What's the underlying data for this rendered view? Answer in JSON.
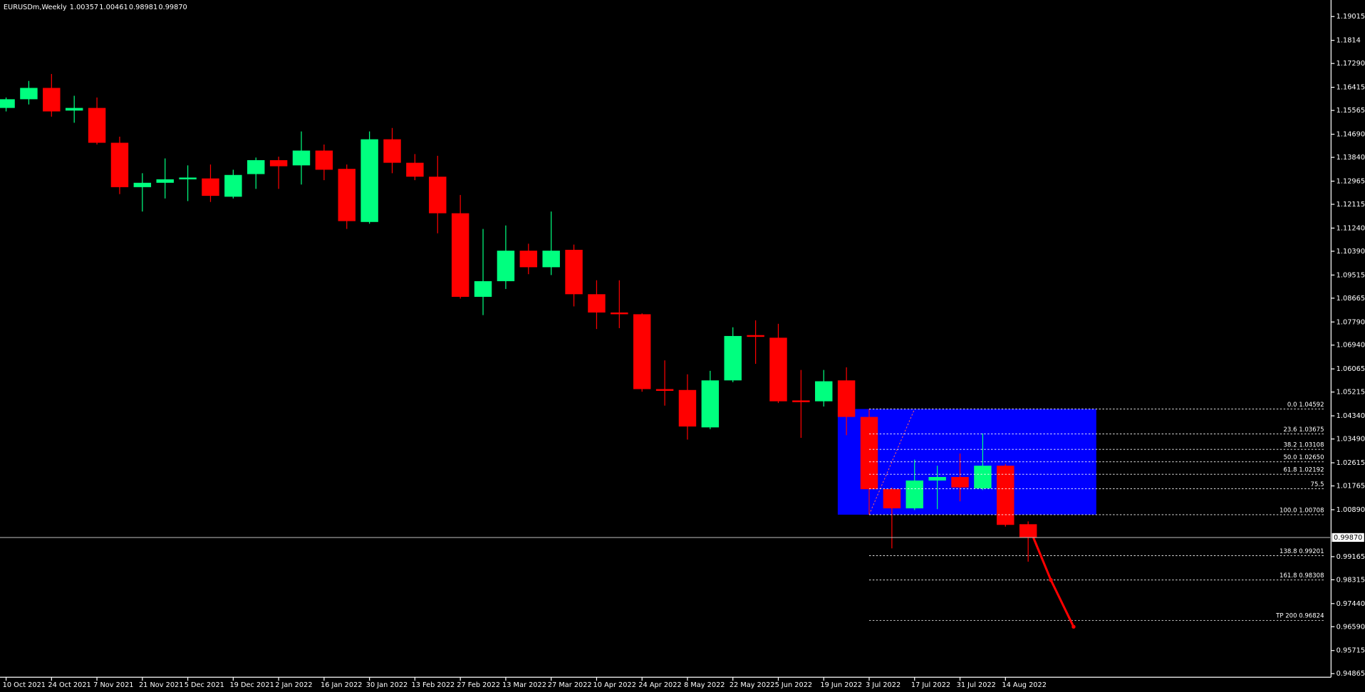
{
  "chart_data": {
    "type": "candlestick",
    "header": {
      "symbol": "EURUSDm,Weekly",
      "quote": [
        "1.00357",
        "1.00461",
        "0.98981",
        "0.99870"
      ]
    },
    "categories": [
      "10 Oct 2021",
      null,
      "24 Oct 2021",
      null,
      "7 Nov 2021",
      null,
      "21 Nov 2021",
      null,
      "5 Dec 2021",
      null,
      "19 Dec 2021",
      null,
      "2 Jan 2022",
      null,
      "16 Jan 2022",
      null,
      "30 Jan 2022",
      null,
      "13 Feb 2022",
      null,
      "27 Feb 2022",
      null,
      "13 Mar 2022",
      null,
      "27 Mar 2022",
      null,
      "10 Apr 2022",
      null,
      "24 Apr 2022",
      null,
      "8 May 2022",
      null,
      "22 May 2022",
      null,
      "5 Jun 2022",
      null,
      "19 Jun 2022",
      null,
      "3 Jul 2022",
      null,
      "17 Jul 2022",
      null,
      "31 Jul 2022",
      null,
      "14 Aug 2022",
      null
    ],
    "up_color": "#00ff7f",
    "down_color": "#ff0000",
    "open": [
      1.15656,
      1.15976,
      1.16392,
      1.1556,
      1.15656,
      1.14376,
      1.12745,
      1.12905,
      1.13033,
      1.13065,
      1.12393,
      1.13225,
      1.13737,
      1.13545,
      1.14089,
      1.13417,
      1.11465,
      1.14504,
      1.13641,
      1.13129,
      1.11785,
      1.08714,
      1.0929,
      1.1041,
      1.09802,
      1.10442,
      1.0881,
      1.08138,
      1.08074,
      1.05323,
      1.05291,
      1.03916,
      1.05643,
      1.07307,
      1.07211,
      1.04907,
      1.04875,
      1.05643,
      1.043,
      1.01644,
      1.00941,
      1.01964,
      1.02092,
      1.01676,
      1.02508,
      1.00357
    ],
    "high": [
      1.1604,
      1.16648,
      1.16904,
      1.16104,
      1.1604,
      1.146,
      1.13257,
      1.13801,
      1.13545,
      1.13577,
      1.13385,
      1.13833,
      1.13865,
      1.14792,
      1.14312,
      1.13577,
      1.14792,
      1.1492,
      1.13961,
      1.13897,
      1.12457,
      1.11209,
      1.11337,
      1.10666,
      1.11849,
      1.10634,
      1.09322,
      1.09322,
      1.08106,
      1.06379,
      1.05867,
      1.05995,
      1.07595,
      1.0785,
      1.07723,
      1.06027,
      1.06027,
      1.06123,
      1.04588,
      1.01708,
      1.02732,
      1.02508,
      1.02956,
      1.03692,
      1.02572,
      1.00461
    ],
    "low": [
      1.15528,
      1.15784,
      1.15336,
      1.15112,
      1.14312,
      1.12489,
      1.11849,
      1.12329,
      1.12233,
      1.12201,
      1.12329,
      1.12681,
      1.12681,
      1.12841,
      1.13001,
      1.11209,
      1.11401,
      1.13257,
      1.13001,
      1.11049,
      1.0865,
      1.08042,
      1.09002,
      1.09546,
      1.09514,
      1.08362,
      1.07531,
      1.07563,
      1.05227,
      1.04715,
      1.03468,
      1.03852,
      1.05579,
      1.06251,
      1.04811,
      1.03532,
      1.04683,
      1.03628,
      1.00717,
      0.99469,
      1.00877,
      1.00909,
      1.01197,
      1.01612,
      1.00269,
      0.98981
    ],
    "close": [
      1.15976,
      1.16392,
      1.15528,
      1.15656,
      1.14376,
      1.12745,
      1.12905,
      1.13033,
      1.13097,
      1.12425,
      1.13193,
      1.13737,
      1.13513,
      1.14089,
      1.13385,
      1.11497,
      1.14504,
      1.13641,
      1.13129,
      1.11785,
      1.08714,
      1.0929,
      1.1041,
      1.09802,
      1.1041,
      1.0881,
      1.08138,
      1.08074,
      1.05323,
      1.05259,
      1.03948,
      1.05643,
      1.07275,
      1.07243,
      1.04875,
      1.04843,
      1.05611,
      1.043,
      1.01644,
      1.00941,
      1.01964,
      1.02092,
      1.01708,
      1.02508,
      1.00333,
      0.9987
    ],
    "ylim": [
      0.94735,
      1.19623
    ],
    "yticks": [
      1.19015,
      1.1814,
      {
        "value": 1.1729,
        "label": "1.17290"
      },
      1.16415,
      1.15565,
      {
        "value": 1.1469,
        "label": "1.14690"
      },
      {
        "value": 1.1384,
        "label": "1.13840"
      },
      1.12965,
      1.12115,
      {
        "value": 1.1124,
        "label": "1.11240"
      },
      {
        "value": 1.1039,
        "label": "1.10390"
      },
      1.09515,
      1.08665,
      {
        "value": 1.0779,
        "label": "1.07790"
      },
      {
        "value": 1.0694,
        "label": "1.06940"
      },
      1.06065,
      1.05215,
      {
        "value": 1.0434,
        "label": "1.04340"
      },
      {
        "value": 1.0349,
        "label": "1.03490"
      },
      1.02615,
      1.01765,
      {
        "value": 1.0089,
        "label": "1.00890"
      },
      0.99165,
      0.98315,
      {
        "value": 0.9744,
        "label": "0.97440"
      },
      {
        "value": 0.9659,
        "label": "0.96590"
      },
      0.95715,
      0.94865
    ],
    "fib_levels": [
      {
        "label": "0.0 1.04592",
        "value": 1.04592
      },
      {
        "label": "23.6 1.03675",
        "value": 1.03675
      },
      {
        "label": "38.2 1.03108",
        "value": 1.03108
      },
      {
        "label": "50.0 1.02650",
        "value": 1.0265
      },
      {
        "label": "61.8 1.02192",
        "value": 1.02192
      },
      {
        "label": "75.5",
        "value": 1.0166
      },
      {
        "label": "100.0 1.00708",
        "value": 1.00708
      },
      {
        "label": "138.8 0.99201",
        "value": 0.99201
      },
      {
        "label": "161.8 0.98308",
        "value": 0.98308
      },
      {
        "label": "TP 200 0.96824",
        "value": 0.96824
      }
    ],
    "zone_color": "#0000ff",
    "projection": {
      "color": "#ff0000",
      "values": [
        1.00333,
        0.98308,
        0.9659
      ]
    }
  }
}
